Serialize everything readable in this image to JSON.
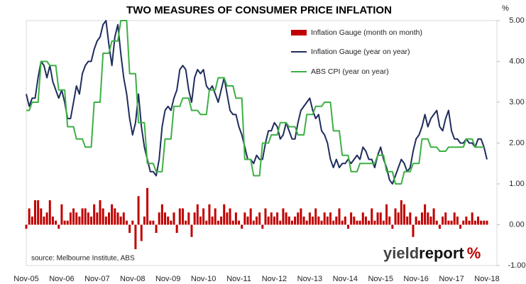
{
  "chart_data": {
    "type": "combo",
    "title": "TWO MEASURES OF CONSUMER PRICE INFLATION",
    "y_unit": "%",
    "source": "source: Melbourne Institute, ABS",
    "logo": [
      "yield",
      "report",
      "%"
    ],
    "legend": "top",
    "categories": [
      "Nov-05",
      null,
      null,
      null,
      null,
      null,
      null,
      null,
      null,
      null,
      null,
      null,
      "Nov-06",
      null,
      null,
      null,
      null,
      null,
      null,
      null,
      null,
      null,
      null,
      null,
      "Nov-07",
      null,
      null,
      null,
      null,
      null,
      null,
      null,
      null,
      null,
      null,
      null,
      "Nov-08",
      null,
      null,
      null,
      null,
      null,
      null,
      null,
      null,
      null,
      null,
      null,
      "Nov-09",
      null,
      null,
      null,
      null,
      null,
      null,
      null,
      null,
      null,
      null,
      null,
      "Nov-10",
      null,
      null,
      null,
      null,
      null,
      null,
      null,
      null,
      null,
      null,
      null,
      "Nov-11",
      null,
      null,
      null,
      null,
      null,
      null,
      null,
      null,
      null,
      null,
      null,
      "Nov-12",
      null,
      null,
      null,
      null,
      null,
      null,
      null,
      null,
      null,
      null,
      null,
      "Nov-13",
      null,
      null,
      null,
      null,
      null,
      null,
      null,
      null,
      null,
      null,
      null,
      "Nov-14",
      null,
      null,
      null,
      null,
      null,
      null,
      null,
      null,
      null,
      null,
      null,
      "Nov-15",
      null,
      null,
      null,
      null,
      null,
      null,
      null,
      null,
      null,
      null,
      null,
      "Nov-16",
      null,
      null,
      null,
      null,
      null,
      null,
      null,
      null,
      null,
      null,
      null,
      "Nov-17",
      null,
      null,
      null,
      null,
      null,
      null,
      null,
      null,
      null,
      null,
      null,
      "Nov-18"
    ],
    "ylim": [
      -1,
      5
    ],
    "yticks": [
      {
        "value": -1,
        "label": "-1.00"
      },
      {
        "value": 0,
        "label": "0.00"
      },
      {
        "value": 1,
        "label": "1.00"
      },
      {
        "value": 2,
        "label": "2.00"
      },
      {
        "value": 3,
        "label": "3.00"
      },
      {
        "value": 4,
        "label": "4.00"
      },
      {
        "value": 5,
        "label": "5.00"
      }
    ],
    "series": [
      {
        "name": "Inflation Gauge (month on month)",
        "type": "bar",
        "color": "#c00000",
        "values": [
          -0.1,
          0.4,
          0.2,
          0.6,
          0.6,
          0.4,
          0.2,
          0.3,
          0.6,
          0.2,
          0.1,
          -0.1,
          0.5,
          0.1,
          0.1,
          0.3,
          0.4,
          0.3,
          0.2,
          0.4,
          0.4,
          0.3,
          0.2,
          0.5,
          0.3,
          0.6,
          0.4,
          0.2,
          0.3,
          0.5,
          0.4,
          0.3,
          0.2,
          0.3,
          0.1,
          -0.2,
          0.1,
          -0.6,
          0.7,
          -0.4,
          0.2,
          0.9,
          0.1,
          0.1,
          -0.2,
          0.3,
          0.5,
          0.3,
          0.2,
          0.1,
          0.3,
          -0.2,
          0.4,
          0.4,
          0.1,
          0.3,
          -0.3,
          0.3,
          0.5,
          0.2,
          0.4,
          0.1,
          0.5,
          0.2,
          0.4,
          0.1,
          0.2,
          0.5,
          0.3,
          0.4,
          0.1,
          0.3,
          0.1,
          -0.1,
          0.3,
          0.2,
          0.4,
          0.1,
          0.2,
          0.3,
          -0.1,
          0.4,
          0.2,
          0.3,
          0.2,
          0.3,
          0.1,
          0.4,
          0.3,
          0.2,
          0.1,
          0.2,
          0.3,
          0.4,
          0.2,
          0.1,
          0.3,
          0.2,
          0.4,
          0.2,
          0.1,
          0.3,
          0.2,
          0.3,
          0.1,
          0.2,
          0.4,
          0.1,
          0.2,
          -0.1,
          0.3,
          0.2,
          0.1,
          0.1,
          0.3,
          0.2,
          0.1,
          0.4,
          0.1,
          0.3,
          0.3,
          0.1,
          0.5,
          0.2,
          -0.1,
          0.4,
          0.3,
          0.6,
          0.5,
          0.2,
          0.3,
          -0.3,
          0.2,
          0.1,
          0.3,
          0.5,
          0.3,
          0.2,
          0.4,
          0.1,
          -0.1,
          0.2,
          0.3,
          0.1,
          0.1,
          0.3,
          0.2,
          -0.1,
          0.1,
          0.2,
          0.1,
          0.3,
          0.1,
          0.2,
          0.1,
          0.1,
          0.1
        ]
      },
      {
        "name": "Inflation Gauge (year on year)",
        "type": "line",
        "color": "#1f2d5c",
        "values": [
          3.2,
          2.9,
          3.1,
          3.1,
          3.6,
          4.0,
          3.9,
          3.6,
          3.9,
          3.5,
          3.3,
          3.1,
          3.3,
          3.0,
          2.6,
          2.6,
          3.0,
          3.4,
          3.2,
          3.7,
          3.9,
          4.0,
          4.0,
          4.3,
          4.5,
          4.6,
          4.9,
          5.0,
          4.4,
          3.9,
          4.6,
          4.9,
          4.2,
          3.6,
          3.2,
          2.6,
          2.2,
          2.5,
          3.2,
          2.4,
          1.9,
          1.6,
          1.3,
          1.3,
          1.2,
          1.6,
          2.4,
          2.8,
          2.9,
          2.8,
          3.1,
          3.3,
          3.8,
          3.9,
          3.8,
          3.3,
          3.0,
          3.6,
          3.8,
          3.7,
          3.8,
          3.4,
          3.3,
          3.4,
          3.2,
          3.0,
          3.3,
          3.6,
          3.2,
          2.8,
          2.7,
          2.7,
          2.4,
          2.2,
          1.9,
          1.6,
          1.6,
          1.5,
          1.7,
          1.6,
          1.6,
          2.0,
          2.3,
          2.3,
          2.5,
          2.4,
          2.1,
          2.2,
          2.5,
          2.3,
          2.1,
          2.1,
          2.5,
          2.8,
          2.9,
          3.0,
          3.1,
          2.8,
          2.6,
          2.7,
          2.3,
          2.2,
          2.0,
          1.6,
          1.4,
          1.6,
          1.4,
          1.5,
          1.5,
          1.6,
          1.5,
          1.6,
          1.7,
          1.6,
          1.9,
          1.8,
          1.6,
          1.6,
          1.4,
          1.7,
          1.9,
          1.6,
          1.4,
          1.1,
          1.0,
          1.2,
          1.4,
          1.6,
          1.5,
          1.3,
          1.4,
          1.8,
          2.1,
          2.2,
          2.4,
          2.7,
          2.4,
          2.6,
          2.7,
          2.8,
          2.4,
          2.3,
          2.6,
          2.8,
          2.3,
          2.1,
          2.1,
          2.0,
          2.0,
          2.1,
          2.0,
          2.0,
          1.9,
          2.1,
          2.1,
          1.9,
          1.6
        ]
      },
      {
        "name": "ABS CPI (year on year)",
        "type": "line",
        "color": "#3cb043",
        "values": [
          2.8,
          2.8,
          3.0,
          3.0,
          3.0,
          4.0,
          4.0,
          4.0,
          3.9,
          3.9,
          3.9,
          3.3,
          3.3,
          3.3,
          2.4,
          2.4,
          2.4,
          2.1,
          2.1,
          2.1,
          1.9,
          1.9,
          1.9,
          3.0,
          3.0,
          3.0,
          4.2,
          4.2,
          4.2,
          4.5,
          4.5,
          4.5,
          5.0,
          5.0,
          5.0,
          3.7,
          3.7,
          3.7,
          2.5,
          2.5,
          2.5,
          1.5,
          1.5,
          1.5,
          1.3,
          1.3,
          1.3,
          2.1,
          2.1,
          2.1,
          2.9,
          2.9,
          2.9,
          3.1,
          3.1,
          3.1,
          2.8,
          2.8,
          2.8,
          2.7,
          2.7,
          2.7,
          3.3,
          3.3,
          3.3,
          3.6,
          3.6,
          3.6,
          3.4,
          3.4,
          3.4,
          3.1,
          3.1,
          3.1,
          1.6,
          1.6,
          1.6,
          1.2,
          1.2,
          1.2,
          2.0,
          2.0,
          2.0,
          2.2,
          2.2,
          2.2,
          2.5,
          2.5,
          2.5,
          2.4,
          2.4,
          2.4,
          2.2,
          2.2,
          2.2,
          2.7,
          2.7,
          2.7,
          2.9,
          2.9,
          2.9,
          3.0,
          3.0,
          3.0,
          2.3,
          2.3,
          2.3,
          1.7,
          1.7,
          1.7,
          1.3,
          1.3,
          1.3,
          1.5,
          1.5,
          1.5,
          1.5,
          1.5,
          1.5,
          1.7,
          1.7,
          1.7,
          1.3,
          1.3,
          1.3,
          1.0,
          1.0,
          1.0,
          1.3,
          1.3,
          1.3,
          1.5,
          1.5,
          1.5,
          2.1,
          2.1,
          2.1,
          1.9,
          1.9,
          1.9,
          1.8,
          1.8,
          1.8,
          1.9,
          1.9,
          1.9,
          1.9,
          1.9,
          1.9,
          2.1,
          2.1,
          2.1,
          1.9,
          1.9,
          1.9,
          1.9,
          null
        ]
      }
    ]
  }
}
